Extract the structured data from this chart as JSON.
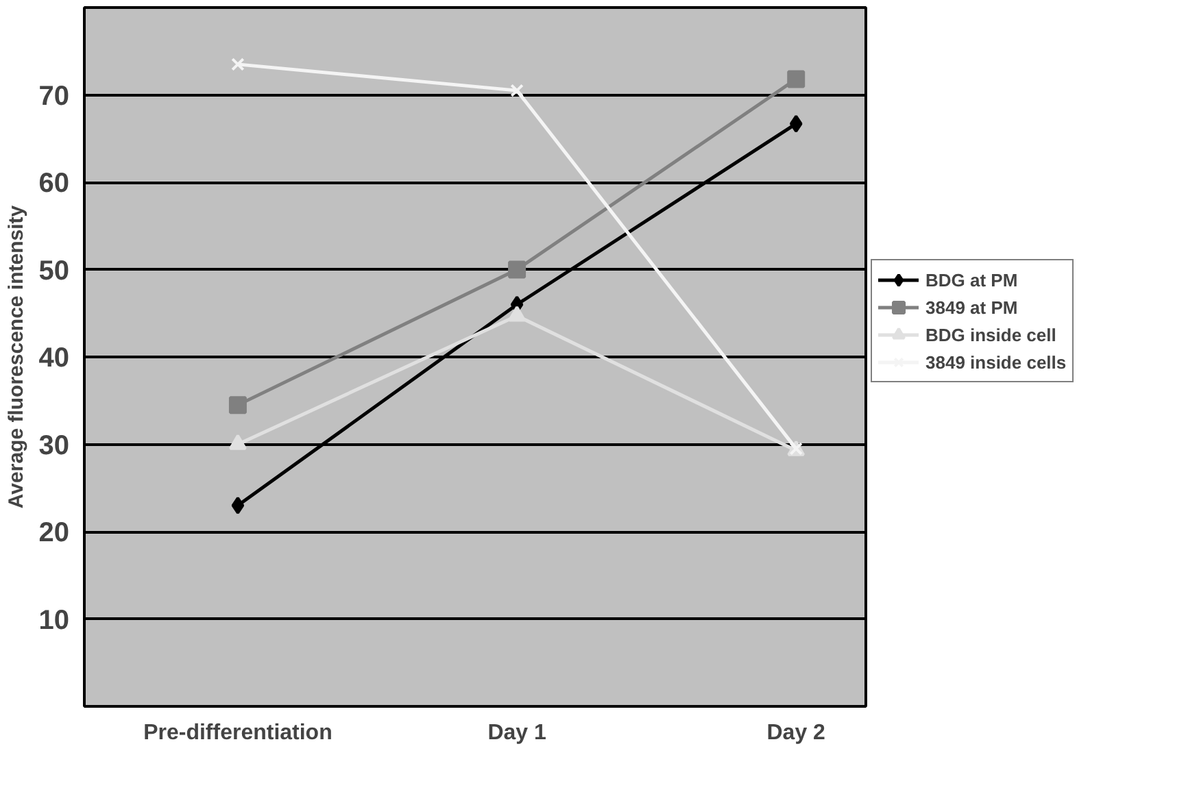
{
  "chart_data": {
    "type": "line",
    "ylabel": "Average fluorescence intensity",
    "categories": [
      "Pre-differentiation",
      "Day 1",
      "Day 2"
    ],
    "ylim": [
      0,
      80
    ],
    "yticks": [
      {
        "value": 0,
        "label": null
      },
      10,
      20,
      30,
      40,
      50,
      60,
      70,
      {
        "value": 80,
        "label": null
      }
    ],
    "grid": "y",
    "legend": "right",
    "series": [
      {
        "name": "BDG at PM",
        "color": "#000000",
        "marker": "diamond",
        "values": [
          23,
          46,
          66.7
        ]
      },
      {
        "name": "3849 at PM",
        "color": "#808080",
        "marker": "square",
        "values": [
          34.5,
          50,
          71.8
        ]
      },
      {
        "name": "BDG inside cell",
        "color": "#e0e0e0",
        "marker": "triangle",
        "values": [
          30,
          44.7,
          29.3
        ]
      },
      {
        "name": "3849 inside cells",
        "color": "#f4f4f4",
        "marker": "cross",
        "values": [
          73.5,
          70.5,
          29.5
        ]
      }
    ]
  }
}
